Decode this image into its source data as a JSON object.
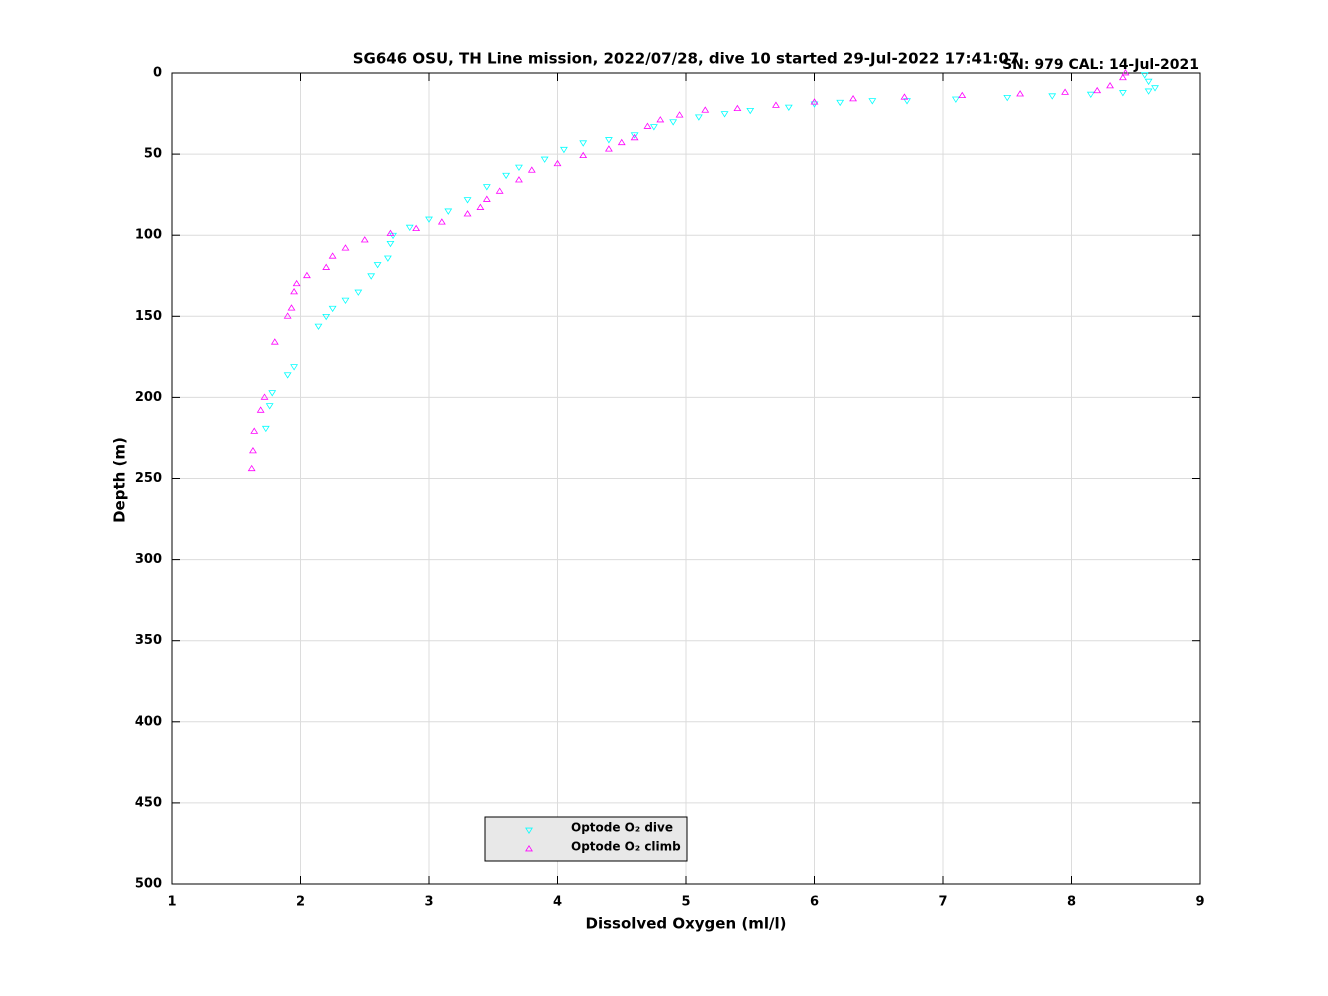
{
  "chart_data": {
    "type": "scatter",
    "title": "SG646 OSU, TH Line mission, 2022/07/28, dive 10 started 29-Jul-2022 17:41:07",
    "annotation": "SN: 979  CAL: 14-Jul-2021",
    "annotation_color": "#8b3a0f",
    "x_label": "Dissolved Oxygen (ml/l)",
    "y_label": "Depth (m)",
    "xlim": [
      1,
      9
    ],
    "ylim": [
      0,
      500
    ],
    "y_reversed": true,
    "xticks": [
      1,
      2,
      3,
      4,
      5,
      6,
      7,
      8,
      9
    ],
    "yticks": [
      0,
      50,
      100,
      150,
      200,
      250,
      300,
      350,
      400,
      450,
      500
    ],
    "grid": true,
    "legend": "bottom",
    "series": [
      {
        "name": "Optode O₂ dive",
        "color": "#00ffff",
        "marker": "triangle-down",
        "x": [
          1.73,
          1.76,
          1.78,
          1.9,
          1.95,
          2.14,
          2.2,
          2.25,
          2.35,
          2.45,
          2.55,
          2.6,
          2.68,
          2.7,
          2.72,
          2.85,
          3.0,
          3.15,
          3.3,
          3.45,
          3.6,
          3.7,
          3.9,
          4.05,
          4.2,
          4.4,
          4.6,
          4.75,
          4.9,
          5.1,
          5.3,
          5.5,
          5.8,
          6.0,
          6.2,
          6.45,
          6.72,
          7.1,
          7.5,
          7.85,
          8.15,
          8.4,
          8.6,
          8.65,
          8.6,
          8.57
        ],
        "values": [
          219,
          205,
          197,
          186,
          181,
          156,
          150,
          145,
          140,
          135,
          125,
          118,
          114,
          105,
          100,
          95,
          90,
          85,
          78,
          70,
          63,
          58,
          53,
          47,
          43,
          41,
          38,
          33,
          30,
          27,
          25,
          23,
          21,
          19,
          18,
          17,
          17,
          16,
          15,
          14,
          13,
          12,
          11,
          9,
          5,
          1
        ]
      },
      {
        "name": "Optode O₂ climb",
        "color": "#ff00ff",
        "marker": "triangle-up",
        "x": [
          1.62,
          1.63,
          1.64,
          1.69,
          1.72,
          1.8,
          1.9,
          1.93,
          1.95,
          1.97,
          2.05,
          2.2,
          2.25,
          2.35,
          2.5,
          2.7,
          2.9,
          3.1,
          3.3,
          3.4,
          3.45,
          3.55,
          3.7,
          3.8,
          4.0,
          4.2,
          4.4,
          4.5,
          4.6,
          4.7,
          4.8,
          4.95,
          5.15,
          5.4,
          5.7,
          6.0,
          6.3,
          6.7,
          7.15,
          7.6,
          7.95,
          8.2,
          8.3,
          8.4,
          8.42
        ],
        "values": [
          244,
          233,
          221,
          208,
          200,
          166,
          150,
          145,
          135,
          130,
          125,
          120,
          113,
          108,
          103,
          99,
          96,
          92,
          87,
          83,
          78,
          73,
          66,
          60,
          56,
          51,
          47,
          43,
          40,
          33,
          29,
          26,
          23,
          22,
          20,
          18,
          16,
          15,
          14,
          13,
          12,
          11,
          8,
          3,
          0
        ]
      }
    ]
  }
}
